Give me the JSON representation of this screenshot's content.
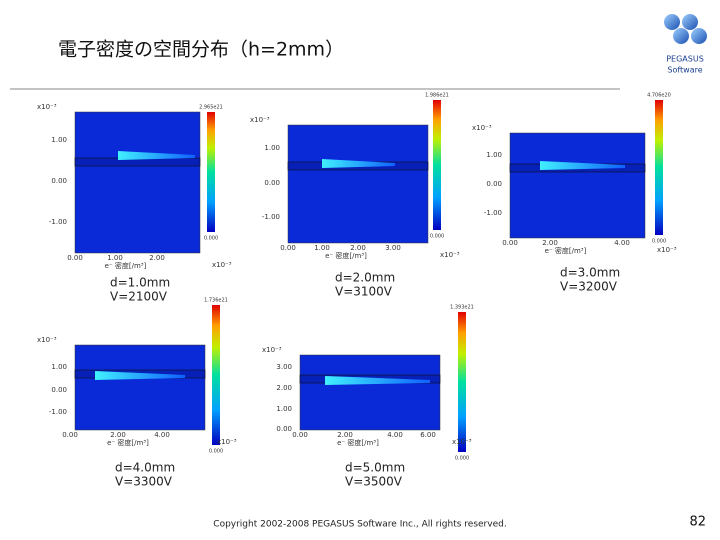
{
  "header": {
    "title": "電子密度の空間分布（h=2mm）"
  },
  "logo": {
    "name": "PEGASUS",
    "sub": "Software"
  },
  "panels": [
    {
      "colorbar_max": "2.965e21",
      "colorbar_min": "0.000",
      "exponent_y": "x10⁻³",
      "exponent_x": "x10⁻³",
      "x_label": "e⁻ 密度[/m³]",
      "yticks": [
        "1.00",
        "0.00",
        "-1.00"
      ],
      "xticks": [
        "0.00",
        "1.00",
        "2.00"
      ],
      "caption": [
        "d=1.0mm",
        "V=2100V"
      ]
    },
    {
      "colorbar_max": "1.986e21",
      "colorbar_min": "0.000",
      "exponent_y": "x10⁻³",
      "exponent_x": "x10⁻³",
      "x_label": "e⁻ 密度[/m³]",
      "yticks": [
        "1.00",
        "0.00",
        "-1.00"
      ],
      "xticks": [
        "0.00",
        "1.00",
        "2.00",
        "3.00"
      ],
      "caption": [
        "d=2.0mm",
        "V=3100V"
      ]
    },
    {
      "colorbar_max": "4.706e20",
      "colorbar_min": "0.000",
      "exponent_y": "x10⁻³",
      "exponent_x": "x10⁻³",
      "x_label": "e⁻ 密度[/m³]",
      "yticks": [
        "1.00",
        "0.00",
        "-1.00"
      ],
      "xticks": [
        "0.00",
        "2.00",
        "4.00"
      ],
      "caption": [
        "d=3.0mm",
        "V=3200V"
      ]
    },
    {
      "colorbar_max": "1.736e21",
      "colorbar_min": "0.000",
      "exponent_y": "x10⁻³",
      "exponent_x": "x10⁻³",
      "x_label": "e⁻ 密度[/m³]",
      "yticks": [
        "1.00",
        "0.00",
        "-1.00"
      ],
      "xticks": [
        "0.00",
        "2.00",
        "4.00"
      ],
      "caption": [
        "d=4.0mm",
        "V=3300V"
      ]
    },
    {
      "colorbar_max": "1.393e21",
      "colorbar_min": "0.000",
      "exponent_y": "x10⁻³",
      "exponent_x": "x10⁻³",
      "x_label": "e⁻ 密度[/m³]",
      "yticks": [
        "3.00",
        "2.00",
        "1.00",
        "0.00"
      ],
      "xticks": [
        "0.00",
        "2.00",
        "4.00",
        "6.00"
      ],
      "caption": [
        "d=5.0mm",
        "V=3500V"
      ]
    }
  ],
  "footer": {
    "copyright": "Copyright 2002-2008 PEGASUS Software Inc., All rights reserved.",
    "page": "82"
  }
}
